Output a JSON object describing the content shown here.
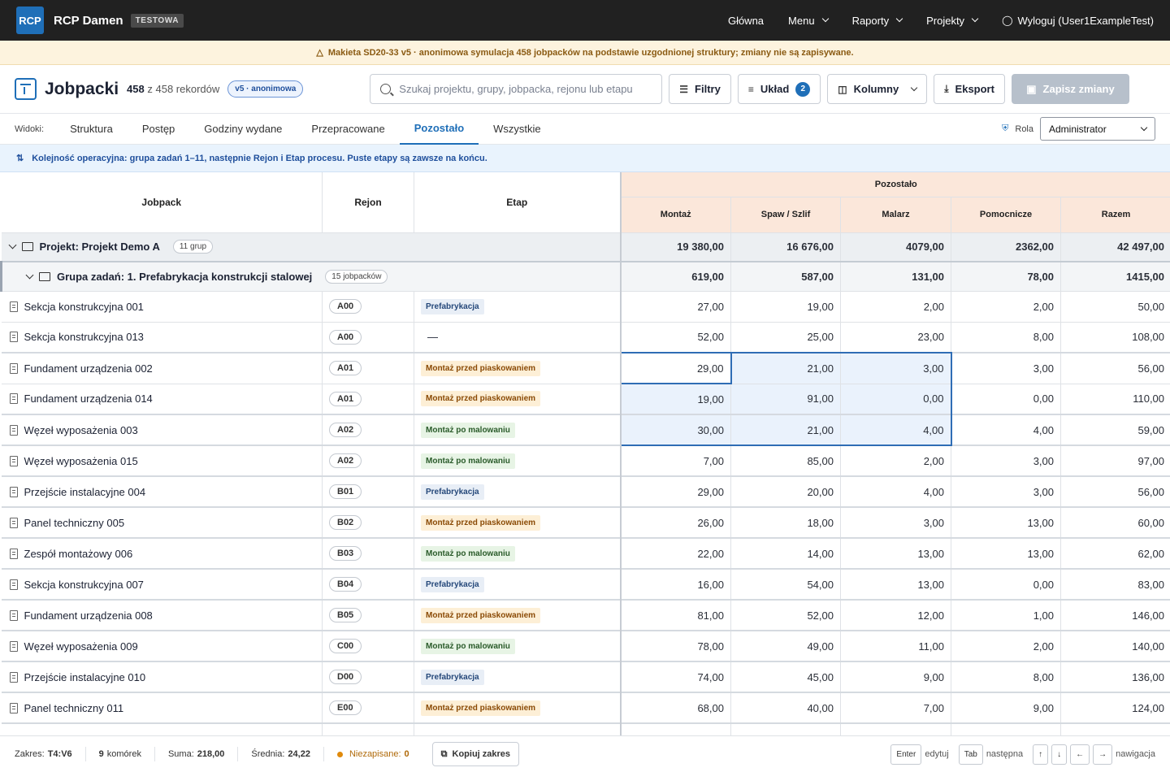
{
  "app": {
    "logo": "RCP",
    "brand": "RCP Damen",
    "env": "TESTOWA"
  },
  "topnav": {
    "home": "Główna",
    "menu": "Menu",
    "reports": "Raporty",
    "projects": "Projekty",
    "logout": "Wyloguj (User1ExampleTest)"
  },
  "banner": "Makieta SD20-33 v5 · anonimowa symulacja 458 jobpacków na podstawie uzgodnionej struktury; zmiany nie są zapisywane.",
  "toolbar": {
    "title": "Jobpacki",
    "count_main": "458",
    "count_rest": "z 458 rekordów",
    "version_pill": "v5 · anonimowa",
    "search_placeholder": "Szukaj projektu, grupy, jobpacka, rejonu lub etapu",
    "filters": "Filtry",
    "layout": "Układ",
    "layout_count": "2",
    "columns": "Kolumny",
    "export": "Eksport",
    "save": "Zapisz zmiany"
  },
  "views": {
    "label": "Widoki:",
    "tabs": [
      "Struktura",
      "Postęp",
      "Godziny wydane",
      "Przepracowane",
      "Pozostało",
      "Wszystkie"
    ],
    "active": "Pozostało",
    "role_label": "Rola",
    "role_value": "Administrator"
  },
  "info": "Kolejność operacyjna: grupa zadań 1–11, następnie Rejon i Etap procesu. Puste etapy są zawsze na końcu.",
  "table": {
    "headers": {
      "jobpack": "Jobpack",
      "rejon": "Rejon",
      "etap": "Etap",
      "group": "Pozostało",
      "cols": [
        "Montaż",
        "Spaw / Szlif",
        "Malarz",
        "Pomocnicze",
        "Razem"
      ]
    },
    "project": {
      "label": "Projekt: Projekt Demo A",
      "count": "11 grup",
      "values": [
        "19 380,00",
        "16 676,00",
        "4079,00",
        "2362,00",
        "42 497,00"
      ]
    },
    "group": {
      "label": "Grupa zadań: 1. Prefabrykacja konstrukcji stalowej",
      "count": "15 jobpacków",
      "values": [
        "619,00",
        "587,00",
        "131,00",
        "78,00",
        "1415,00"
      ]
    },
    "rows": [
      {
        "name": "Sekcja konstrukcyjna 001",
        "rejon": "A00",
        "etap": "Prefabrykacja",
        "values": [
          "27,00",
          "19,00",
          "2,00",
          "2,00",
          "50,00"
        ]
      },
      {
        "name": "Sekcja konstrukcyjna 013",
        "rejon": "A00",
        "etap": "—",
        "values": [
          "52,00",
          "25,00",
          "23,00",
          "8,00",
          "108,00"
        ]
      },
      {
        "name": "Fundament urządzenia 002",
        "rejon": "A01",
        "etap": "Montaż przed piaskowaniem",
        "values": [
          "29,00",
          "21,00",
          "3,00",
          "3,00",
          "56,00"
        ]
      },
      {
        "name": "Fundament urządzenia 014",
        "rejon": "A01",
        "etap": "Montaż przed piaskowaniem",
        "values": [
          "19,00",
          "91,00",
          "0,00",
          "0,00",
          "110,00"
        ]
      },
      {
        "name": "Węzeł wyposażenia 003",
        "rejon": "A02",
        "etap": "Montaż po malowaniu",
        "values": [
          "30,00",
          "21,00",
          "4,00",
          "4,00",
          "59,00"
        ]
      },
      {
        "name": "Węzeł wyposażenia 015",
        "rejon": "A02",
        "etap": "Montaż po malowaniu",
        "values": [
          "7,00",
          "85,00",
          "2,00",
          "3,00",
          "97,00"
        ]
      },
      {
        "name": "Przejście instalacyjne 004",
        "rejon": "B01",
        "etap": "Prefabrykacja",
        "values": [
          "29,00",
          "20,00",
          "4,00",
          "3,00",
          "56,00"
        ]
      },
      {
        "name": "Panel techniczny 005",
        "rejon": "B02",
        "etap": "Montaż przed piaskowaniem",
        "values": [
          "26,00",
          "18,00",
          "3,00",
          "13,00",
          "60,00"
        ]
      },
      {
        "name": "Zespół montażowy 006",
        "rejon": "B03",
        "etap": "Montaż po malowaniu",
        "values": [
          "22,00",
          "14,00",
          "13,00",
          "13,00",
          "62,00"
        ]
      },
      {
        "name": "Sekcja konstrukcyjna 007",
        "rejon": "B04",
        "etap": "Prefabrykacja",
        "values": [
          "16,00",
          "54,00",
          "13,00",
          "0,00",
          "83,00"
        ]
      },
      {
        "name": "Fundament urządzenia 008",
        "rejon": "B05",
        "etap": "Montaż przed piaskowaniem",
        "values": [
          "81,00",
          "52,00",
          "12,00",
          "1,00",
          "146,00"
        ]
      },
      {
        "name": "Węzeł wyposażenia 009",
        "rejon": "C00",
        "etap": "Montaż po malowaniu",
        "values": [
          "78,00",
          "49,00",
          "11,00",
          "2,00",
          "140,00"
        ]
      },
      {
        "name": "Przejście instalacyjne 010",
        "rejon": "D00",
        "etap": "Prefabrykacja",
        "values": [
          "74,00",
          "45,00",
          "9,00",
          "8,00",
          "136,00"
        ]
      },
      {
        "name": "Panel techniczny 011",
        "rejon": "E00",
        "etap": "Montaż przed piaskowaniem",
        "values": [
          "68,00",
          "40,00",
          "7,00",
          "9,00",
          "124,00"
        ]
      }
    ]
  },
  "status": {
    "range_label": "Zakres:",
    "range": "T4:V6",
    "cells": "9",
    "cells_label": "komórek",
    "sum_label": "Suma:",
    "sum": "218,00",
    "avg_label": "Średnia:",
    "avg": "24,22",
    "unsaved_label": "Niezapisane:",
    "unsaved": "0",
    "copy": "Kopiuj zakres",
    "keys": {
      "enter": "Enter",
      "enter_label": "edytuj",
      "tab": "Tab",
      "tab_label": "następna",
      "up": "↑",
      "down": "↓",
      "left": "←",
      "right": "→",
      "nav_label": "nawigacja"
    }
  }
}
